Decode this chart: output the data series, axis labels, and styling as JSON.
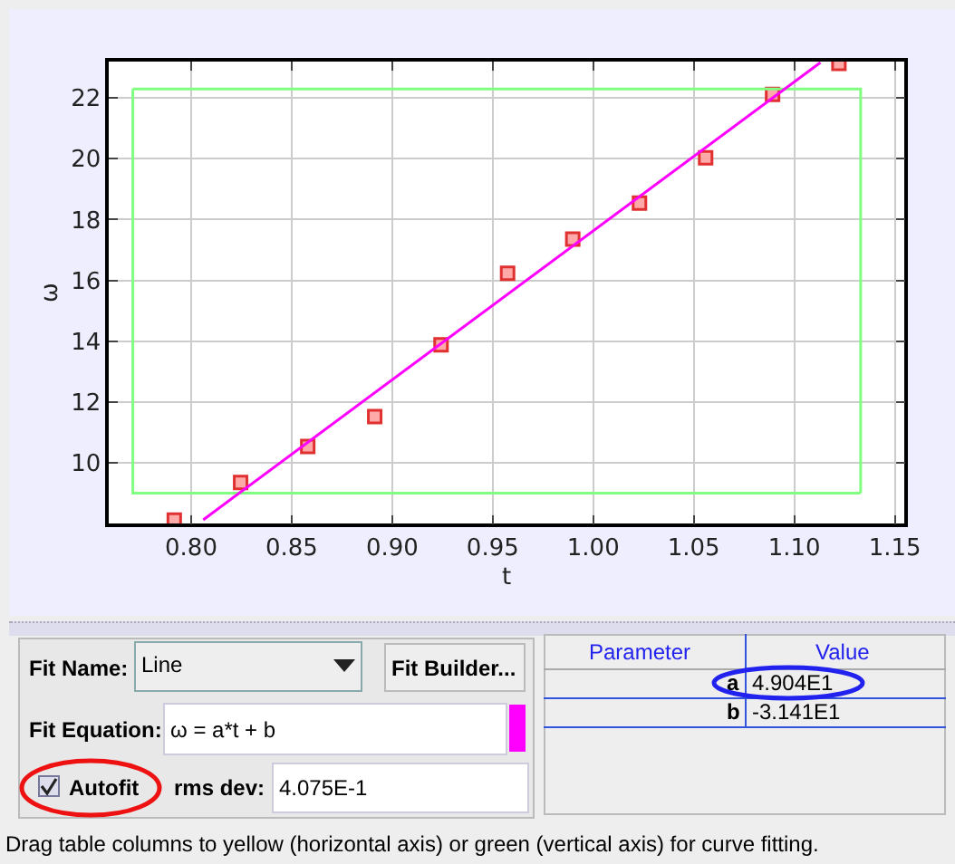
{
  "chart_data": {
    "type": "scatter",
    "xlabel": "t",
    "ylabel": "ω",
    "series": [
      {
        "color": "#e03030",
        "marker": "square",
        "x": [
          0.7916,
          0.8246,
          0.858,
          0.8913,
          0.9243,
          0.9574,
          0.9898,
          1.023,
          1.0559,
          1.0892,
          1.1222
        ],
        "values": [
          8.11,
          9.35,
          10.53,
          11.52,
          13.88,
          16.23,
          17.36,
          18.54,
          20.03,
          22.12,
          23.14
        ]
      },
      {
        "type": "line",
        "color": "#80ff80",
        "x": [
          0.771,
          0.771,
          1.133
        ],
        "values": [
          22.3,
          9.0,
          9.0
        ]
      },
      {
        "type": "line",
        "color": "#80ff80",
        "x": [
          0.771,
          1.133,
          1.133
        ],
        "values": [
          22.3,
          22.3,
          9.0
        ]
      },
      {
        "type": "line",
        "color": "#ff00ff",
        "x": [
          0.806,
          1.113
        ],
        "values": [
          8.12,
          23.17
        ]
      }
    ],
    "xlim": [
      0.759,
      1.1547
    ],
    "xticks": [
      {
        "value": 0.8,
        "label": "0.80"
      },
      0.85,
      {
        "value": 0.9,
        "label": "0.90"
      },
      0.95,
      {
        "value": 1.0,
        "label": "1.00"
      },
      1.05,
      {
        "value": 1.1,
        "label": "1.10"
      },
      1.15
    ],
    "ylim": [
      8.0,
      23.2
    ],
    "yticks": [
      10,
      12,
      14,
      16,
      18,
      20,
      22
    ],
    "grid": true,
    "annotations": [
      "Fit Name:",
      "Line",
      "Fit Builder...",
      "Fit Equation:",
      "ω = a*t + b",
      "Autofit",
      "rms dev:",
      "4.075E-1",
      "Parameter",
      "Value",
      "a",
      "4.904E1",
      "b",
      "-3.141E1",
      "Drag table columns to yellow (horizontal axis) or green (vertical axis) for curve fitting."
    ]
  }
}
